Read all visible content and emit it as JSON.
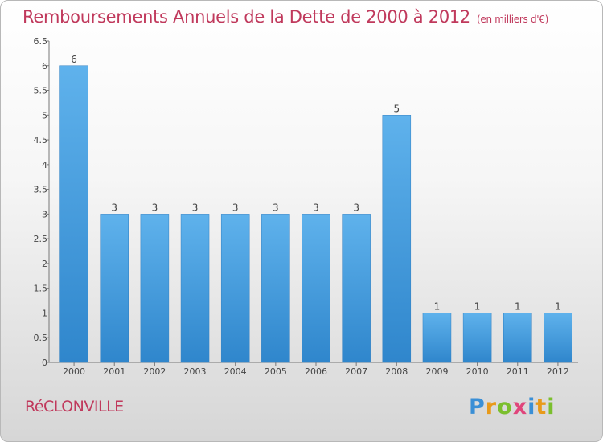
{
  "header": {
    "title": "Remboursements Annuels de la Dette de 2000 à 2012",
    "unit": "(en milliers d'€)"
  },
  "footer": {
    "commune": "RéCLONVILLE",
    "logo_letters": [
      {
        "char": "P",
        "color": "#3a8fd6"
      },
      {
        "char": "r",
        "color": "#e89a1a"
      },
      {
        "char": "o",
        "color": "#7bbf2e"
      },
      {
        "char": "x",
        "color": "#e0457b"
      },
      {
        "char": "i",
        "color": "#3a8fd6"
      },
      {
        "char": "t",
        "color": "#e89a1a"
      },
      {
        "char": "i",
        "color": "#7bbf2e"
      }
    ]
  },
  "chart_data": {
    "type": "bar",
    "categories": [
      "2000",
      "2001",
      "2002",
      "2003",
      "2004",
      "2005",
      "2006",
      "2007",
      "2008",
      "2009",
      "2010",
      "2011",
      "2012"
    ],
    "values": [
      6,
      3,
      3,
      3,
      3,
      3,
      3,
      3,
      5,
      1,
      1,
      1,
      1
    ],
    "data_labels": [
      "6",
      "3",
      "3",
      "3",
      "3",
      "3",
      "3",
      "3",
      "5",
      "1",
      "1",
      "1",
      "1"
    ],
    "yticks": [
      "0",
      "0.5",
      "1",
      "1.5",
      "2",
      "2.5",
      "3",
      "3.5",
      "4",
      "4.5",
      "5",
      "5.5",
      "6",
      "6.5"
    ],
    "ylim": [
      0,
      6.5
    ],
    "grid": false,
    "bar_color": "#4aa0e0"
  }
}
